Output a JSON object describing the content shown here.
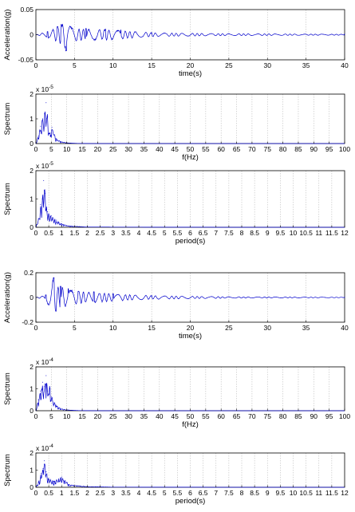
{
  "colors": {
    "trace": "#0000cc",
    "grid": "#bdbdbd",
    "axis": "#000000",
    "background": "#ffffff"
  },
  "chart_data": [
    {
      "type": "line",
      "xlabel": "time(s)",
      "ylabel": "Acceleration(g)",
      "xlim": [
        0,
        40
      ],
      "ylim": [
        -0.05,
        0.05
      ],
      "xticks": [
        "0",
        "5",
        "10",
        "15",
        "20",
        "25",
        "30",
        "35",
        "40"
      ],
      "yticks": [
        "-0.05",
        "0",
        "0.05"
      ],
      "grid": "vertical",
      "exponent": "",
      "signal": {
        "kind": "accel",
        "peaks": [
          {
            "x": 1.5,
            "y": 0.006
          },
          {
            "x": 2.8,
            "y": 0.016
          },
          {
            "x": 3.3,
            "y": 0.02
          },
          {
            "x": 3.9,
            "y": -0.032
          },
          {
            "x": 4.7,
            "y": 0.013
          },
          {
            "x": 6.5,
            "y": 0.012
          },
          {
            "x": 9.0,
            "y": 0.011
          },
          {
            "x": 11.0,
            "y": 0.009
          },
          {
            "x": 15.0,
            "y": 0.004
          },
          {
            "x": 25.0,
            "y": 0.002
          },
          {
            "x": 40.0,
            "y": 0.001
          }
        ]
      }
    },
    {
      "type": "line",
      "xlabel": "f(Hz)",
      "ylabel": "Spectrum",
      "xlim": [
        0,
        100
      ],
      "ylim": [
        0,
        2
      ],
      "xticks": [
        "0",
        "5",
        "10",
        "15",
        "20",
        "25",
        "30",
        "35",
        "40",
        "45",
        "50",
        "55",
        "60",
        "65",
        "70",
        "75",
        "80",
        "85",
        "90",
        "95",
        "100"
      ],
      "yticks": [
        "0",
        "1",
        "2"
      ],
      "grid": "vertical",
      "exponent": "x 10|-5",
      "signal": {
        "kind": "spectrum",
        "peaks": [
          {
            "x": 0.8,
            "y": 0.3
          },
          {
            "x": 1.5,
            "y": 0.7
          },
          {
            "x": 2.2,
            "y": 1.0
          },
          {
            "x": 2.8,
            "y": 1.2
          },
          {
            "x": 3.3,
            "y": 1.65
          },
          {
            "x": 3.8,
            "y": 1.1
          },
          {
            "x": 4.4,
            "y": 0.4
          },
          {
            "x": 5.2,
            "y": 0.65
          },
          {
            "x": 6.5,
            "y": 0.2
          },
          {
            "x": 8.0,
            "y": 0.08
          },
          {
            "x": 10.0,
            "y": 0.03
          }
        ]
      }
    },
    {
      "type": "line",
      "xlabel": "period(s)",
      "ylabel": "Spectrum",
      "xlim": [
        0,
        12
      ],
      "ylim": [
        0,
        2
      ],
      "xticks": [
        "0",
        "0.5",
        "1",
        "1.5",
        "2",
        "2.5",
        "3",
        "3.5",
        "4",
        "4.5",
        "5",
        "5.5",
        "6",
        "6.5",
        "7",
        "7.5",
        "8",
        "8.5",
        "9",
        "9.5",
        "10",
        "10.5",
        "11",
        "11.5",
        "12"
      ],
      "yticks": [
        "0",
        "1",
        "2"
      ],
      "grid": "vertical",
      "exponent": "x 10|-5",
      "signal": {
        "kind": "spectrum",
        "peaks": [
          {
            "x": 0.1,
            "y": 0.3
          },
          {
            "x": 0.18,
            "y": 0.8
          },
          {
            "x": 0.25,
            "y": 1.0
          },
          {
            "x": 0.3,
            "y": 1.65
          },
          {
            "x": 0.36,
            "y": 1.2
          },
          {
            "x": 0.45,
            "y": 0.55
          },
          {
            "x": 0.6,
            "y": 0.4
          },
          {
            "x": 0.8,
            "y": 0.25
          },
          {
            "x": 1.0,
            "y": 0.12
          },
          {
            "x": 1.3,
            "y": 0.05
          },
          {
            "x": 2.0,
            "y": 0.01
          }
        ]
      }
    },
    {
      "type": "line",
      "xlabel": "time(s)",
      "ylabel": "Acceleration(g)",
      "xlim": [
        0,
        40
      ],
      "ylim": [
        -0.2,
        0.2
      ],
      "xticks": [
        "0",
        "5",
        "10",
        "15",
        "20",
        "25",
        "30",
        "35",
        "40"
      ],
      "yticks": [
        "-0.2",
        "0",
        "0.2"
      ],
      "grid": "vertical",
      "exponent": "",
      "signal": {
        "kind": "accel",
        "peaks": [
          {
            "x": 1.3,
            "y": 0.02
          },
          {
            "x": 2.3,
            "y": 0.16
          },
          {
            "x": 2.6,
            "y": -0.11
          },
          {
            "x": 3.2,
            "y": 0.09
          },
          {
            "x": 4.2,
            "y": 0.07
          },
          {
            "x": 5.5,
            "y": 0.05
          },
          {
            "x": 7.5,
            "y": 0.045
          },
          {
            "x": 10.0,
            "y": 0.03
          },
          {
            "x": 15.0,
            "y": 0.015
          },
          {
            "x": 25.0,
            "y": 0.006
          },
          {
            "x": 40.0,
            "y": 0.002
          }
        ]
      }
    },
    {
      "type": "line",
      "xlabel": "f(Hz)",
      "ylabel": "Spectrum",
      "xlim": [
        0,
        100
      ],
      "ylim": [
        0,
        2
      ],
      "xticks": [
        "0",
        "5",
        "10",
        "15",
        "20",
        "25",
        "30",
        "35",
        "40",
        "45",
        "50",
        "55",
        "60",
        "65",
        "70",
        "75",
        "80",
        "85",
        "90",
        "95",
        "100"
      ],
      "yticks": [
        "0",
        "1",
        "2"
      ],
      "grid": "vertical",
      "exponent": "x 10|-4",
      "signal": {
        "kind": "spectrum",
        "peaks": [
          {
            "x": 0.8,
            "y": 0.5
          },
          {
            "x": 1.5,
            "y": 0.9
          },
          {
            "x": 2.2,
            "y": 1.3
          },
          {
            "x": 2.8,
            "y": 1.1
          },
          {
            "x": 3.3,
            "y": 1.6
          },
          {
            "x": 3.8,
            "y": 0.9
          },
          {
            "x": 4.5,
            "y": 1.1
          },
          {
            "x": 5.2,
            "y": 0.6
          },
          {
            "x": 6.5,
            "y": 0.25
          },
          {
            "x": 8.0,
            "y": 0.1
          },
          {
            "x": 10.0,
            "y": 0.04
          }
        ]
      }
    },
    {
      "type": "line",
      "xlabel": "period(s)",
      "ylabel": "Spectrum",
      "xlim": [
        0,
        12
      ],
      "ylim": [
        0,
        2
      ],
      "xticks": [
        "0",
        "0.5",
        "1",
        "1.5",
        "2",
        "2.5",
        "3",
        "3.5",
        "4",
        "4.5",
        "5",
        "5.5",
        "6",
        "6.5",
        "7",
        "7.5",
        "8",
        "8.5",
        "9",
        "9.5",
        "10",
        "10.5",
        "11",
        "11.5",
        "12"
      ],
      "yticks": [
        "0",
        "1",
        "2"
      ],
      "grid": "vertical",
      "exponent": "x 10|-4",
      "signal": {
        "kind": "spectrum",
        "peaks": [
          {
            "x": 0.1,
            "y": 0.3
          },
          {
            "x": 0.2,
            "y": 0.8
          },
          {
            "x": 0.28,
            "y": 1.1
          },
          {
            "x": 0.33,
            "y": 1.55
          },
          {
            "x": 0.4,
            "y": 0.9
          },
          {
            "x": 0.5,
            "y": 0.5
          },
          {
            "x": 0.7,
            "y": 0.35
          },
          {
            "x": 1.0,
            "y": 0.6
          },
          {
            "x": 1.3,
            "y": 0.15
          },
          {
            "x": 2.0,
            "y": 0.04
          },
          {
            "x": 3.0,
            "y": 0.01
          }
        ]
      }
    }
  ]
}
